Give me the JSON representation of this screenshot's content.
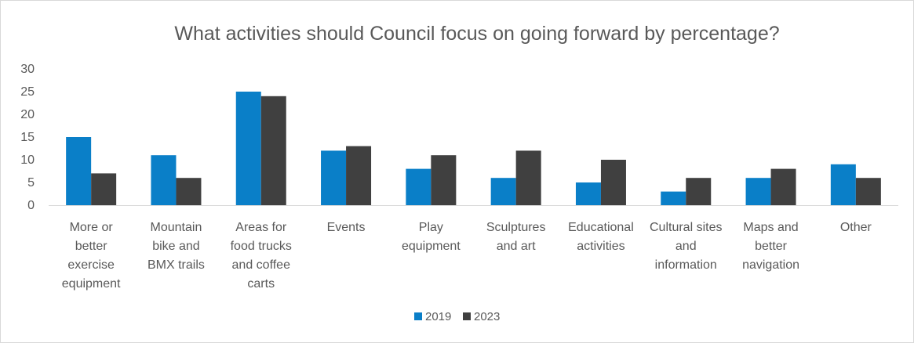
{
  "chart_data": {
    "type": "bar",
    "title": "What activities should Council focus on going forward by percentage?",
    "categories": [
      [
        "More or",
        "better",
        "exercise",
        "equipment"
      ],
      [
        "Mountain",
        "bike and",
        "BMX trails"
      ],
      [
        "Areas for",
        "food trucks",
        "and coffee",
        "carts"
      ],
      [
        "Events"
      ],
      [
        "Play",
        "equipment"
      ],
      [
        "Sculptures",
        "and art"
      ],
      [
        "Educational",
        "activities"
      ],
      [
        "Cultural sites",
        "and",
        "information"
      ],
      [
        "Maps and",
        "better",
        "navigation"
      ],
      [
        "Other"
      ]
    ],
    "series": [
      {
        "name": "2019",
        "color": "#0a7fc8",
        "values": [
          15,
          11,
          25,
          12,
          8,
          6,
          5,
          3,
          6,
          9
        ]
      },
      {
        "name": "2023",
        "color": "#404040",
        "values": [
          7,
          6,
          24,
          13,
          11,
          12,
          10,
          6,
          8,
          6
        ]
      }
    ],
    "ylim": [
      0,
      30
    ],
    "yticks": [
      0,
      5,
      10,
      15,
      20,
      25,
      30
    ],
    "grid": false,
    "legend": "bottom-center"
  }
}
